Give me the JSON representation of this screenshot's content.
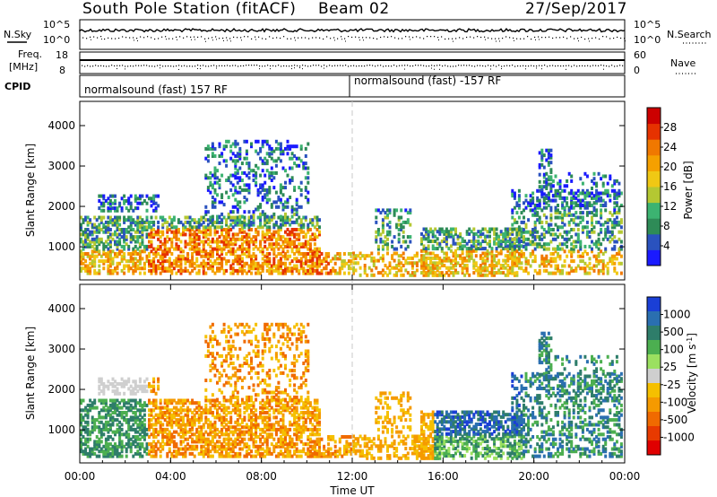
{
  "header": {
    "station": "South Pole Station (fitACF)",
    "beam": "Beam 02",
    "date": "27/Sep/2017"
  },
  "status_panels": {
    "nsky_label": "N.Sky",
    "nsearch_label": "N.Search",
    "freq_label_line1": "Freq.",
    "freq_label_line2": "[MHz]",
    "nave_label": "Nave",
    "cpid_label": "CPID",
    "left_ticks_top": [
      "10^5",
      "10^0"
    ],
    "right_ticks_top": [
      "10^5",
      "10^0"
    ],
    "left_ticks_freq": [
      "18",
      "8"
    ],
    "right_ticks_nave": [
      "60",
      "0"
    ],
    "cpid_segments": [
      "normalsound (fast) 157 RF",
      "normalsound (fast) -157 RF"
    ]
  },
  "chart_data": [
    {
      "type": "heatmap",
      "name": "power",
      "ylabel": "Slant Range [km]",
      "ylim": [
        180,
        4600
      ],
      "yticks": [
        "1000",
        "2000",
        "3000",
        "4000"
      ],
      "ytick_values": [
        1000,
        2000,
        3000,
        4000
      ],
      "xlim": [
        0,
        24
      ],
      "colorbar": {
        "label": "Power [dB]",
        "ticks": [
          "4",
          "8",
          "12",
          "16",
          "20",
          "24",
          "28"
        ],
        "tick_values": [
          4,
          8,
          12,
          16,
          20,
          24,
          28
        ],
        "range": [
          0,
          32
        ],
        "colors": [
          "#1a1aff",
          "#2a52be",
          "#2e8b57",
          "#3cb371",
          "#b4c832",
          "#f0c814",
          "#f5a000",
          "#f07800",
          "#e63200",
          "#cc0000"
        ]
      }
    },
    {
      "type": "heatmap",
      "name": "velocity",
      "ylabel": "Slant Range [km]",
      "ylim": [
        180,
        4600
      ],
      "yticks": [
        "1000",
        "2000",
        "3000",
        "4000"
      ],
      "ytick_values": [
        1000,
        2000,
        3000,
        4000
      ],
      "xlim": [
        0,
        24
      ],
      "xlabel": "Time UT",
      "xticks": [
        "00:00",
        "04:00",
        "08:00",
        "12:00",
        "16:00",
        "20:00",
        "00:00"
      ],
      "xtick_values": [
        0,
        4,
        8,
        12,
        16,
        20,
        24
      ],
      "colorbar": {
        "label": "Velocity [m s-1]",
        "ticks": [
          "1000",
          "500",
          "100",
          "25",
          "-25",
          "-100",
          "-500",
          "-1000"
        ],
        "colors": [
          "#1a3fd6",
          "#2a6fb0",
          "#2e7d6a",
          "#4caf50",
          "#9be060",
          "#cfcfcf",
          "#f5c000",
          "#f59a00",
          "#f06a00",
          "#e83a00",
          "#e00000"
        ]
      }
    }
  ]
}
